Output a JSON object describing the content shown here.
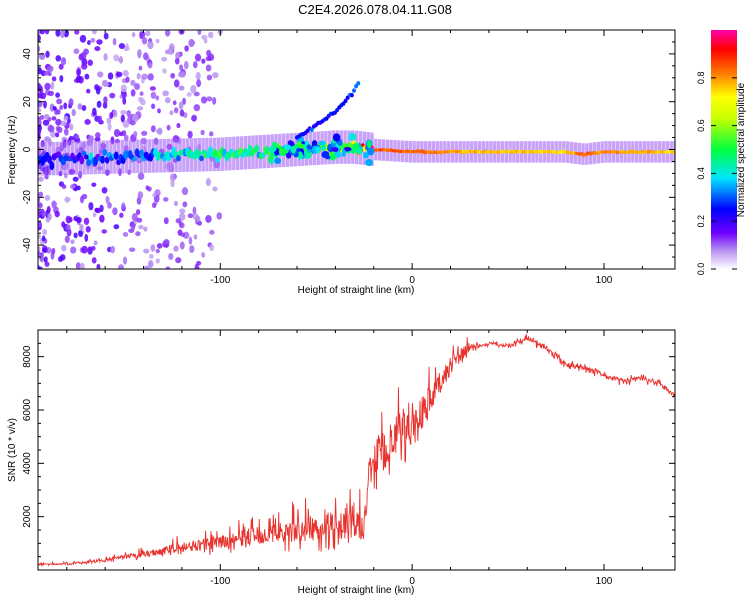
{
  "figure": {
    "title": "C2E4.2026.078.04.11.G08"
  },
  "chart_data": [
    {
      "type": "heatmap",
      "title": "C2E4.2026.078.04.11.G08",
      "xlabel": "Height of straight line (km)",
      "ylabel": "Frequency (Hz)",
      "xlim": [
        -195,
        137
      ],
      "ylim": [
        -50,
        50
      ],
      "xticks": [
        -100,
        0,
        100
      ],
      "xtick_labels": [
        "-100",
        "0",
        "100"
      ],
      "yticks": [
        -40,
        -20,
        0,
        20,
        40
      ],
      "ytick_labels": [
        "-40",
        "-20",
        "0",
        "20",
        "40"
      ],
      "colorbar": {
        "label": "Normalized spectral amplitude",
        "range": [
          0,
          1
        ],
        "ticks": [
          0,
          0.2,
          0.4,
          0.6,
          0.8
        ],
        "tick_labels": [
          "0.0",
          "0.2",
          "0.4",
          "0.6",
          "0.8"
        ]
      },
      "ridge": {
        "x": [
          -195,
          -150,
          -100,
          -60,
          -40,
          -30,
          -20,
          0,
          20,
          50,
          80,
          90,
          100,
          137
        ],
        "frequency": [
          -4,
          -3,
          -2,
          0,
          1,
          1,
          0,
          -1,
          -1,
          -1,
          -1,
          -2,
          -1,
          -1
        ],
        "amplitude": [
          0.2,
          0.3,
          0.45,
          0.45,
          0.6,
          0.7,
          0.85,
          0.85,
          0.8,
          0.75,
          0.75,
          0.85,
          0.8,
          0.75
        ]
      },
      "branch": {
        "x": [
          -60,
          -50,
          -40,
          -35,
          -30,
          -28
        ],
        "frequency": [
          5,
          10,
          16,
          20,
          25,
          28
        ]
      }
    },
    {
      "type": "line",
      "xlabel": "Height of straight line (km)",
      "ylabel": "SNR (10 * v/v)",
      "xlim": [
        -195,
        137
      ],
      "ylim": [
        0,
        9000
      ],
      "xticks": [
        -100,
        0,
        100
      ],
      "xtick_labels": [
        "-100",
        "0",
        "100"
      ],
      "yticks": [
        2000,
        4000,
        6000,
        8000
      ],
      "ytick_labels": [
        "2000",
        "4000",
        "6000",
        "8000"
      ],
      "series": [
        {
          "name": "SNR",
          "color": "#e8312c",
          "x": [
            -195,
            -180,
            -160,
            -140,
            -120,
            -100,
            -80,
            -60,
            -40,
            -25,
            -22,
            -15,
            -10,
            0,
            10,
            20,
            30,
            40,
            50,
            60,
            70,
            80,
            90,
            100,
            110,
            120,
            130,
            137
          ],
          "y": [
            200,
            220,
            350,
            550,
            800,
            950,
            1200,
            1350,
            1500,
            1500,
            3600,
            4200,
            4500,
            5200,
            6200,
            7600,
            8300,
            8500,
            8400,
            8700,
            8300,
            7700,
            7600,
            7300,
            7100,
            7200,
            7000,
            6500
          ],
          "noise": [
            60,
            60,
            120,
            220,
            380,
            500,
            700,
            900,
            1100,
            1100,
            1400,
            1600,
            1600,
            1400,
            1100,
            700,
            350,
            200,
            200,
            250,
            300,
            300,
            280,
            250,
            250,
            250,
            250,
            250
          ]
        }
      ]
    }
  ]
}
